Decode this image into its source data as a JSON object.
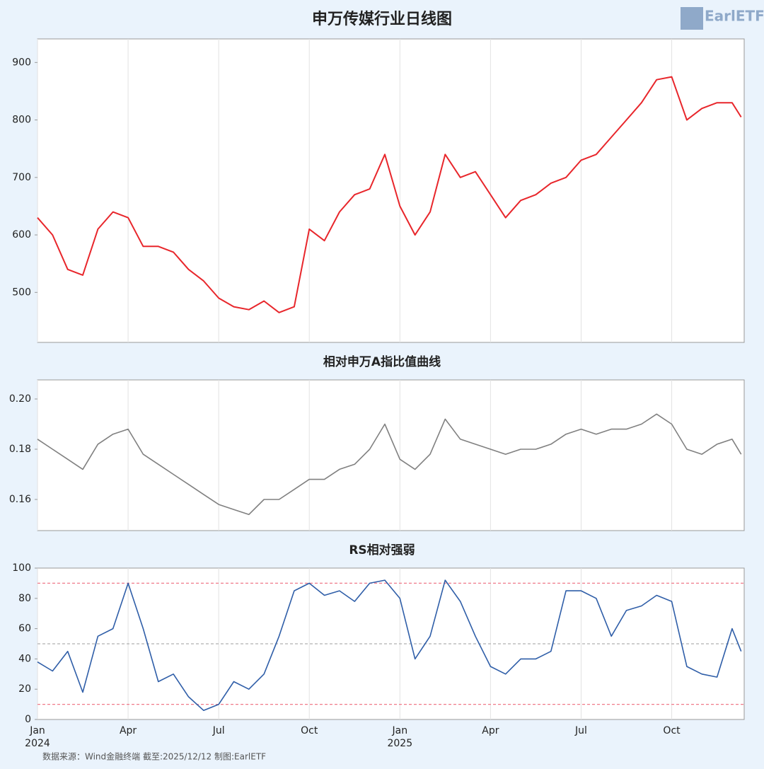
{
  "chart_data": [
    {
      "type": "line",
      "title": "申万传媒行业日线图",
      "x": [
        0,
        0.5,
        1,
        1.5,
        2,
        2.5,
        3,
        3.5,
        4,
        4.5,
        5,
        5.5,
        6,
        6.5,
        7,
        7.5,
        8,
        8.5,
        9,
        9.5,
        10,
        10.5,
        11,
        11.5,
        12,
        12.5,
        13,
        13.5,
        14,
        14.5,
        15,
        15.5,
        16,
        16.5,
        17,
        17.5,
        18,
        18.5,
        19,
        19.5,
        20,
        20.5,
        21,
        21.5,
        22,
        22.5,
        23,
        23.3
      ],
      "series": [
        {
          "color": "#e8262b",
          "values": [
            630,
            600,
            540,
            530,
            610,
            640,
            630,
            580,
            580,
            570,
            540,
            520,
            490,
            475,
            470,
            485,
            465,
            475,
            610,
            590,
            640,
            670,
            680,
            740,
            650,
            600,
            640,
            740,
            700,
            710,
            670,
            630,
            660,
            670,
            690,
            700,
            730,
            740,
            770,
            800,
            830,
            870,
            875,
            800,
            820,
            830,
            830,
            805
          ]
        }
      ],
      "xlim": [
        0,
        23.4
      ],
      "xticks": [
        0,
        3,
        6,
        9,
        12,
        15,
        18,
        21
      ],
      "ylim": [
        413,
        941
      ],
      "yticks": [
        500,
        600,
        700,
        800,
        900
      ],
      "grid": true
    },
    {
      "type": "line",
      "title": "相对申万A指比值曲线",
      "x": [
        0,
        0.5,
        1,
        1.5,
        2,
        2.5,
        3,
        3.5,
        4,
        4.5,
        5,
        5.5,
        6,
        6.5,
        7,
        7.5,
        8,
        8.5,
        9,
        9.5,
        10,
        10.5,
        11,
        11.5,
        12,
        12.5,
        13,
        13.5,
        14,
        14.5,
        15,
        15.5,
        16,
        16.5,
        17,
        17.5,
        18,
        18.5,
        19,
        19.5,
        20,
        20.5,
        21,
        21.5,
        22,
        22.5,
        23,
        23.3
      ],
      "series": [
        {
          "color": "#808080",
          "values": [
            0.184,
            0.18,
            0.176,
            0.172,
            0.182,
            0.186,
            0.188,
            0.178,
            0.174,
            0.17,
            0.166,
            0.162,
            0.158,
            0.156,
            0.154,
            0.16,
            0.16,
            0.164,
            0.168,
            0.168,
            0.172,
            0.174,
            0.18,
            0.19,
            0.176,
            0.172,
            0.178,
            0.192,
            0.184,
            0.182,
            0.18,
            0.178,
            0.18,
            0.18,
            0.182,
            0.186,
            0.188,
            0.186,
            0.188,
            0.188,
            0.19,
            0.194,
            0.19,
            0.18,
            0.178,
            0.182,
            0.184,
            0.178
          ]
        }
      ],
      "xlim": [
        0,
        23.4
      ],
      "xticks": [
        0,
        3,
        6,
        9,
        12,
        15,
        18,
        21
      ],
      "ylim": [
        0.1476,
        0.2076
      ],
      "yticks": [
        0.16,
        0.18,
        {
          "value": 0.2,
          "label": "0.20"
        }
      ],
      "grid": true
    },
    {
      "type": "line",
      "title": "RS相对强弱",
      "x": [
        0,
        0.5,
        1,
        1.5,
        2,
        2.5,
        3,
        3.5,
        4,
        4.5,
        5,
        5.5,
        6,
        6.5,
        7,
        7.5,
        8,
        8.5,
        9,
        9.5,
        10,
        10.5,
        11,
        11.5,
        12,
        12.5,
        13,
        13.5,
        14,
        14.5,
        15,
        15.5,
        16,
        16.5,
        17,
        17.5,
        18,
        18.5,
        19,
        19.5,
        20,
        20.5,
        21,
        21.5,
        22,
        22.5,
        23,
        23.3
      ],
      "series": [
        {
          "color": "#2f5ea8",
          "values": [
            38,
            32,
            45,
            18,
            55,
            60,
            90,
            60,
            25,
            30,
            15,
            6,
            10,
            25,
            20,
            30,
            55,
            85,
            90,
            82,
            85,
            78,
            90,
            92,
            80,
            40,
            55,
            92,
            78,
            55,
            35,
            30,
            40,
            40,
            45,
            85,
            85,
            80,
            55,
            72,
            75,
            82,
            78,
            35,
            30,
            28,
            60,
            45
          ]
        }
      ],
      "hlines": [
        {
          "value": 90,
          "color": "#f07a8a"
        },
        {
          "value": 50,
          "color": "#b0b0b0"
        },
        {
          "value": 10,
          "color": "#f07a8a"
        }
      ],
      "xlim": [
        0,
        23.4
      ],
      "xticks": [
        {
          "value": 0,
          "label": "Jan",
          "year": "2024"
        },
        {
          "value": 3,
          "label": "Apr"
        },
        {
          "value": 6,
          "label": "Jul"
        },
        {
          "value": 9,
          "label": "Oct"
        },
        {
          "value": 12,
          "label": "Jan",
          "year": "2025"
        },
        {
          "value": 15,
          "label": "Apr"
        },
        {
          "value": 18,
          "label": "Jul"
        },
        {
          "value": 21,
          "label": "Oct"
        }
      ],
      "ylim": [
        0,
        100
      ],
      "yticks": [
        0,
        20,
        40,
        60,
        80,
        100
      ],
      "grid": true
    }
  ],
  "source": "数据来源：Wind金融终端 截至:2025/12/12 制图:EarlETF",
  "logo": "EarlETF"
}
